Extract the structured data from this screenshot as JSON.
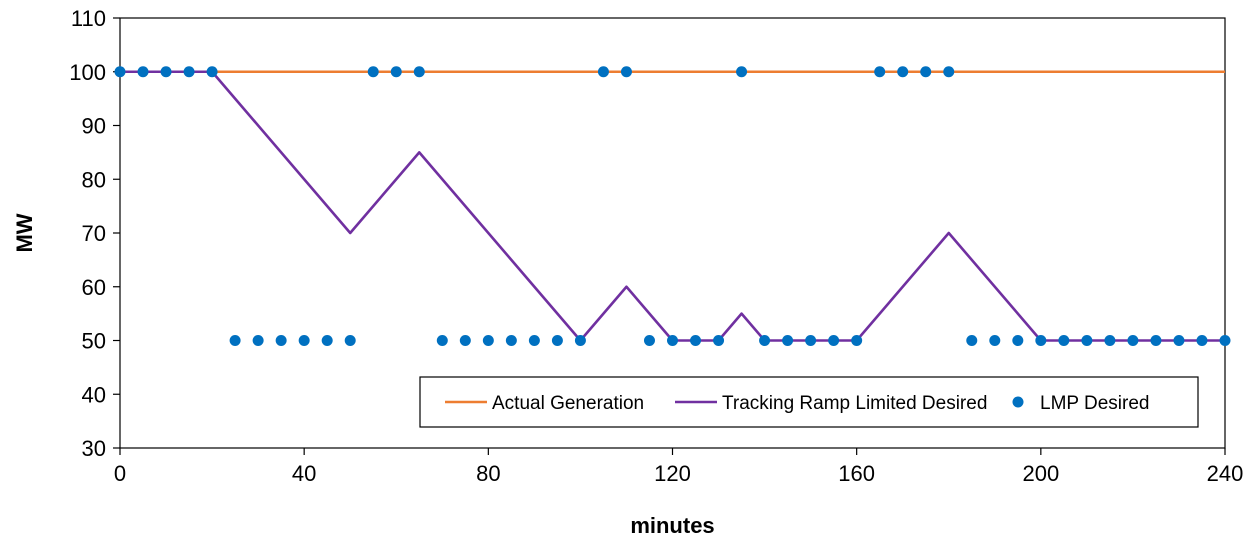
{
  "chart_data": {
    "type": "line",
    "title": "",
    "xlabel": "minutes",
    "ylabel": "MW",
    "xlim": [
      0,
      240
    ],
    "ylim": [
      30,
      110
    ],
    "xticks": [
      0,
      40,
      80,
      120,
      160,
      200,
      240
    ],
    "yticks": [
      30,
      40,
      50,
      60,
      70,
      80,
      90,
      100,
      110
    ],
    "grid": false,
    "legend_position": "bottom-right",
    "series": [
      {
        "name": "Actual Generation",
        "style": "line",
        "color": "#ED7D31",
        "x": [
          0,
          240
        ],
        "y": [
          100,
          100
        ]
      },
      {
        "name": "Tracking Ramp Limited Desired",
        "style": "line",
        "color": "#7030A0",
        "x": [
          0,
          20,
          50,
          65,
          100,
          110,
          120,
          130,
          135,
          140,
          160,
          180,
          200,
          240
        ],
        "y": [
          100,
          100,
          70,
          85,
          50,
          60,
          50,
          50,
          55,
          50,
          50,
          70,
          50,
          50
        ]
      },
      {
        "name": "LMP Desired",
        "style": "marker",
        "color": "#0070C0",
        "x": [
          0,
          5,
          10,
          15,
          20,
          25,
          30,
          35,
          40,
          45,
          50,
          55,
          60,
          65,
          70,
          75,
          80,
          85,
          90,
          95,
          100,
          105,
          110,
          115,
          120,
          125,
          130,
          135,
          140,
          145,
          150,
          155,
          160,
          165,
          170,
          175,
          180,
          185,
          190,
          195,
          200,
          205,
          210,
          215,
          220,
          225,
          230,
          235,
          240
        ],
        "y": [
          100,
          100,
          100,
          100,
          100,
          50,
          50,
          50,
          50,
          50,
          50,
          100,
          100,
          100,
          50,
          50,
          50,
          50,
          50,
          50,
          50,
          100,
          100,
          50,
          50,
          50,
          50,
          100,
          50,
          50,
          50,
          50,
          50,
          100,
          100,
          100,
          100,
          50,
          50,
          50,
          50,
          50,
          50,
          50,
          50,
          50,
          50,
          50,
          50
        ]
      }
    ]
  }
}
